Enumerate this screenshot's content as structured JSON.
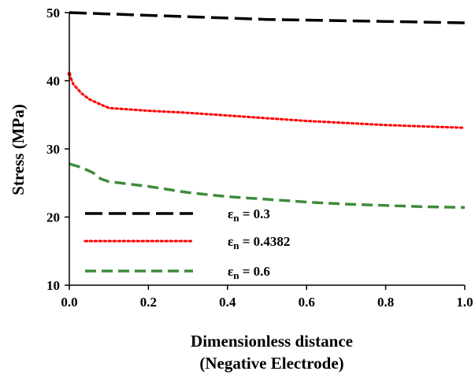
{
  "chart_data": {
    "type": "line",
    "xlabel_lines": [
      "Dimensionless distance",
      "(Negative Electrode)"
    ],
    "ylabel": "Stress (MPa)",
    "xlim": [
      0,
      1
    ],
    "ylim": [
      10,
      50
    ],
    "xticks": [
      "0.0",
      "0.2",
      "0.4",
      "0.6",
      "0.8",
      "1.0"
    ],
    "yticks": [
      "10",
      "20",
      "30",
      "40",
      "50"
    ],
    "grid": false,
    "legend_position": "bottom-left",
    "series": [
      {
        "name": "εn = 0.3",
        "name_base": "ε",
        "name_sub": "n",
        "name_value": " = 0.3",
        "color": "#000000",
        "style": "long-dash",
        "x": [
          0,
          0.1,
          0.2,
          0.3,
          0.4,
          0.5,
          0.6,
          0.7,
          0.8,
          0.9,
          1.0
        ],
        "y": [
          50.0,
          49.8,
          49.6,
          49.4,
          49.2,
          49.0,
          48.9,
          48.8,
          48.7,
          48.6,
          48.5
        ]
      },
      {
        "name": "εn = 0.4382",
        "name_base": "ε",
        "name_sub": "n",
        "name_value": " = 0.4382",
        "color": "#ff0000",
        "style": "dotted",
        "x": [
          0,
          0.01,
          0.03,
          0.05,
          0.08,
          0.1,
          0.2,
          0.3,
          0.4,
          0.5,
          0.6,
          0.7,
          0.8,
          0.9,
          1.0
        ],
        "y": [
          41.0,
          39.5,
          38.2,
          37.3,
          36.5,
          36.0,
          35.6,
          35.3,
          34.9,
          34.5,
          34.1,
          33.8,
          33.5,
          33.3,
          33.1
        ],
        "markers": [
          {
            "x": 0,
            "y": 41.0
          }
        ]
      },
      {
        "name": "εn = 0.6",
        "name_base": "ε",
        "name_sub": "n",
        "name_value": " = 0.6",
        "color": "#3c8c3c",
        "style": "dash",
        "x": [
          0,
          0.03,
          0.06,
          0.08,
          0.1,
          0.2,
          0.3,
          0.4,
          0.5,
          0.6,
          0.7,
          0.8,
          0.9,
          1.0
        ],
        "y": [
          27.8,
          27.3,
          26.5,
          25.6,
          25.2,
          24.5,
          23.6,
          23.0,
          22.6,
          22.2,
          21.9,
          21.7,
          21.5,
          21.4
        ]
      }
    ]
  }
}
